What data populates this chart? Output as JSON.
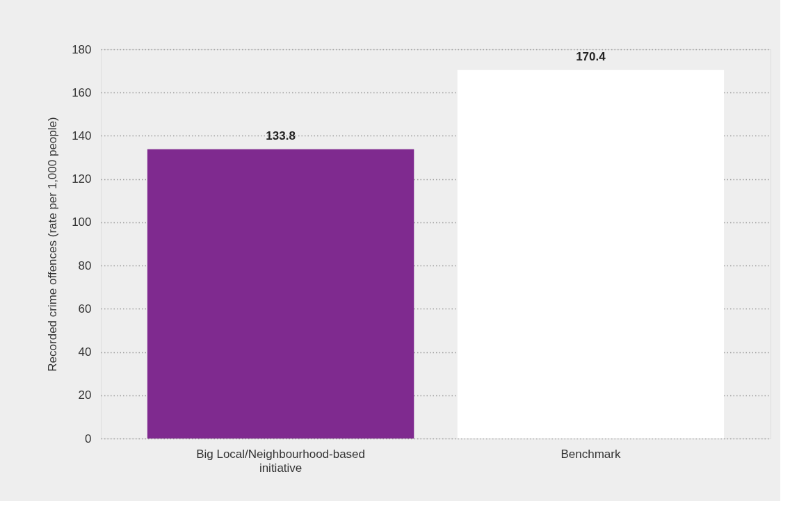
{
  "chart_data": {
    "type": "bar",
    "categories": [
      "Big Local/Neighbourhood-based initiative",
      "Benchmark"
    ],
    "values": [
      133.8,
      170.4
    ],
    "colors": [
      "#7f2a8f",
      "#ffffff"
    ],
    "ylabel": "Recorded crime offences (rate per 1,000 people)",
    "ylim": [
      0,
      180
    ],
    "yticks": [
      0,
      20,
      40,
      60,
      80,
      100,
      120,
      140,
      160,
      180
    ],
    "grid": "y",
    "data_labels": true
  }
}
